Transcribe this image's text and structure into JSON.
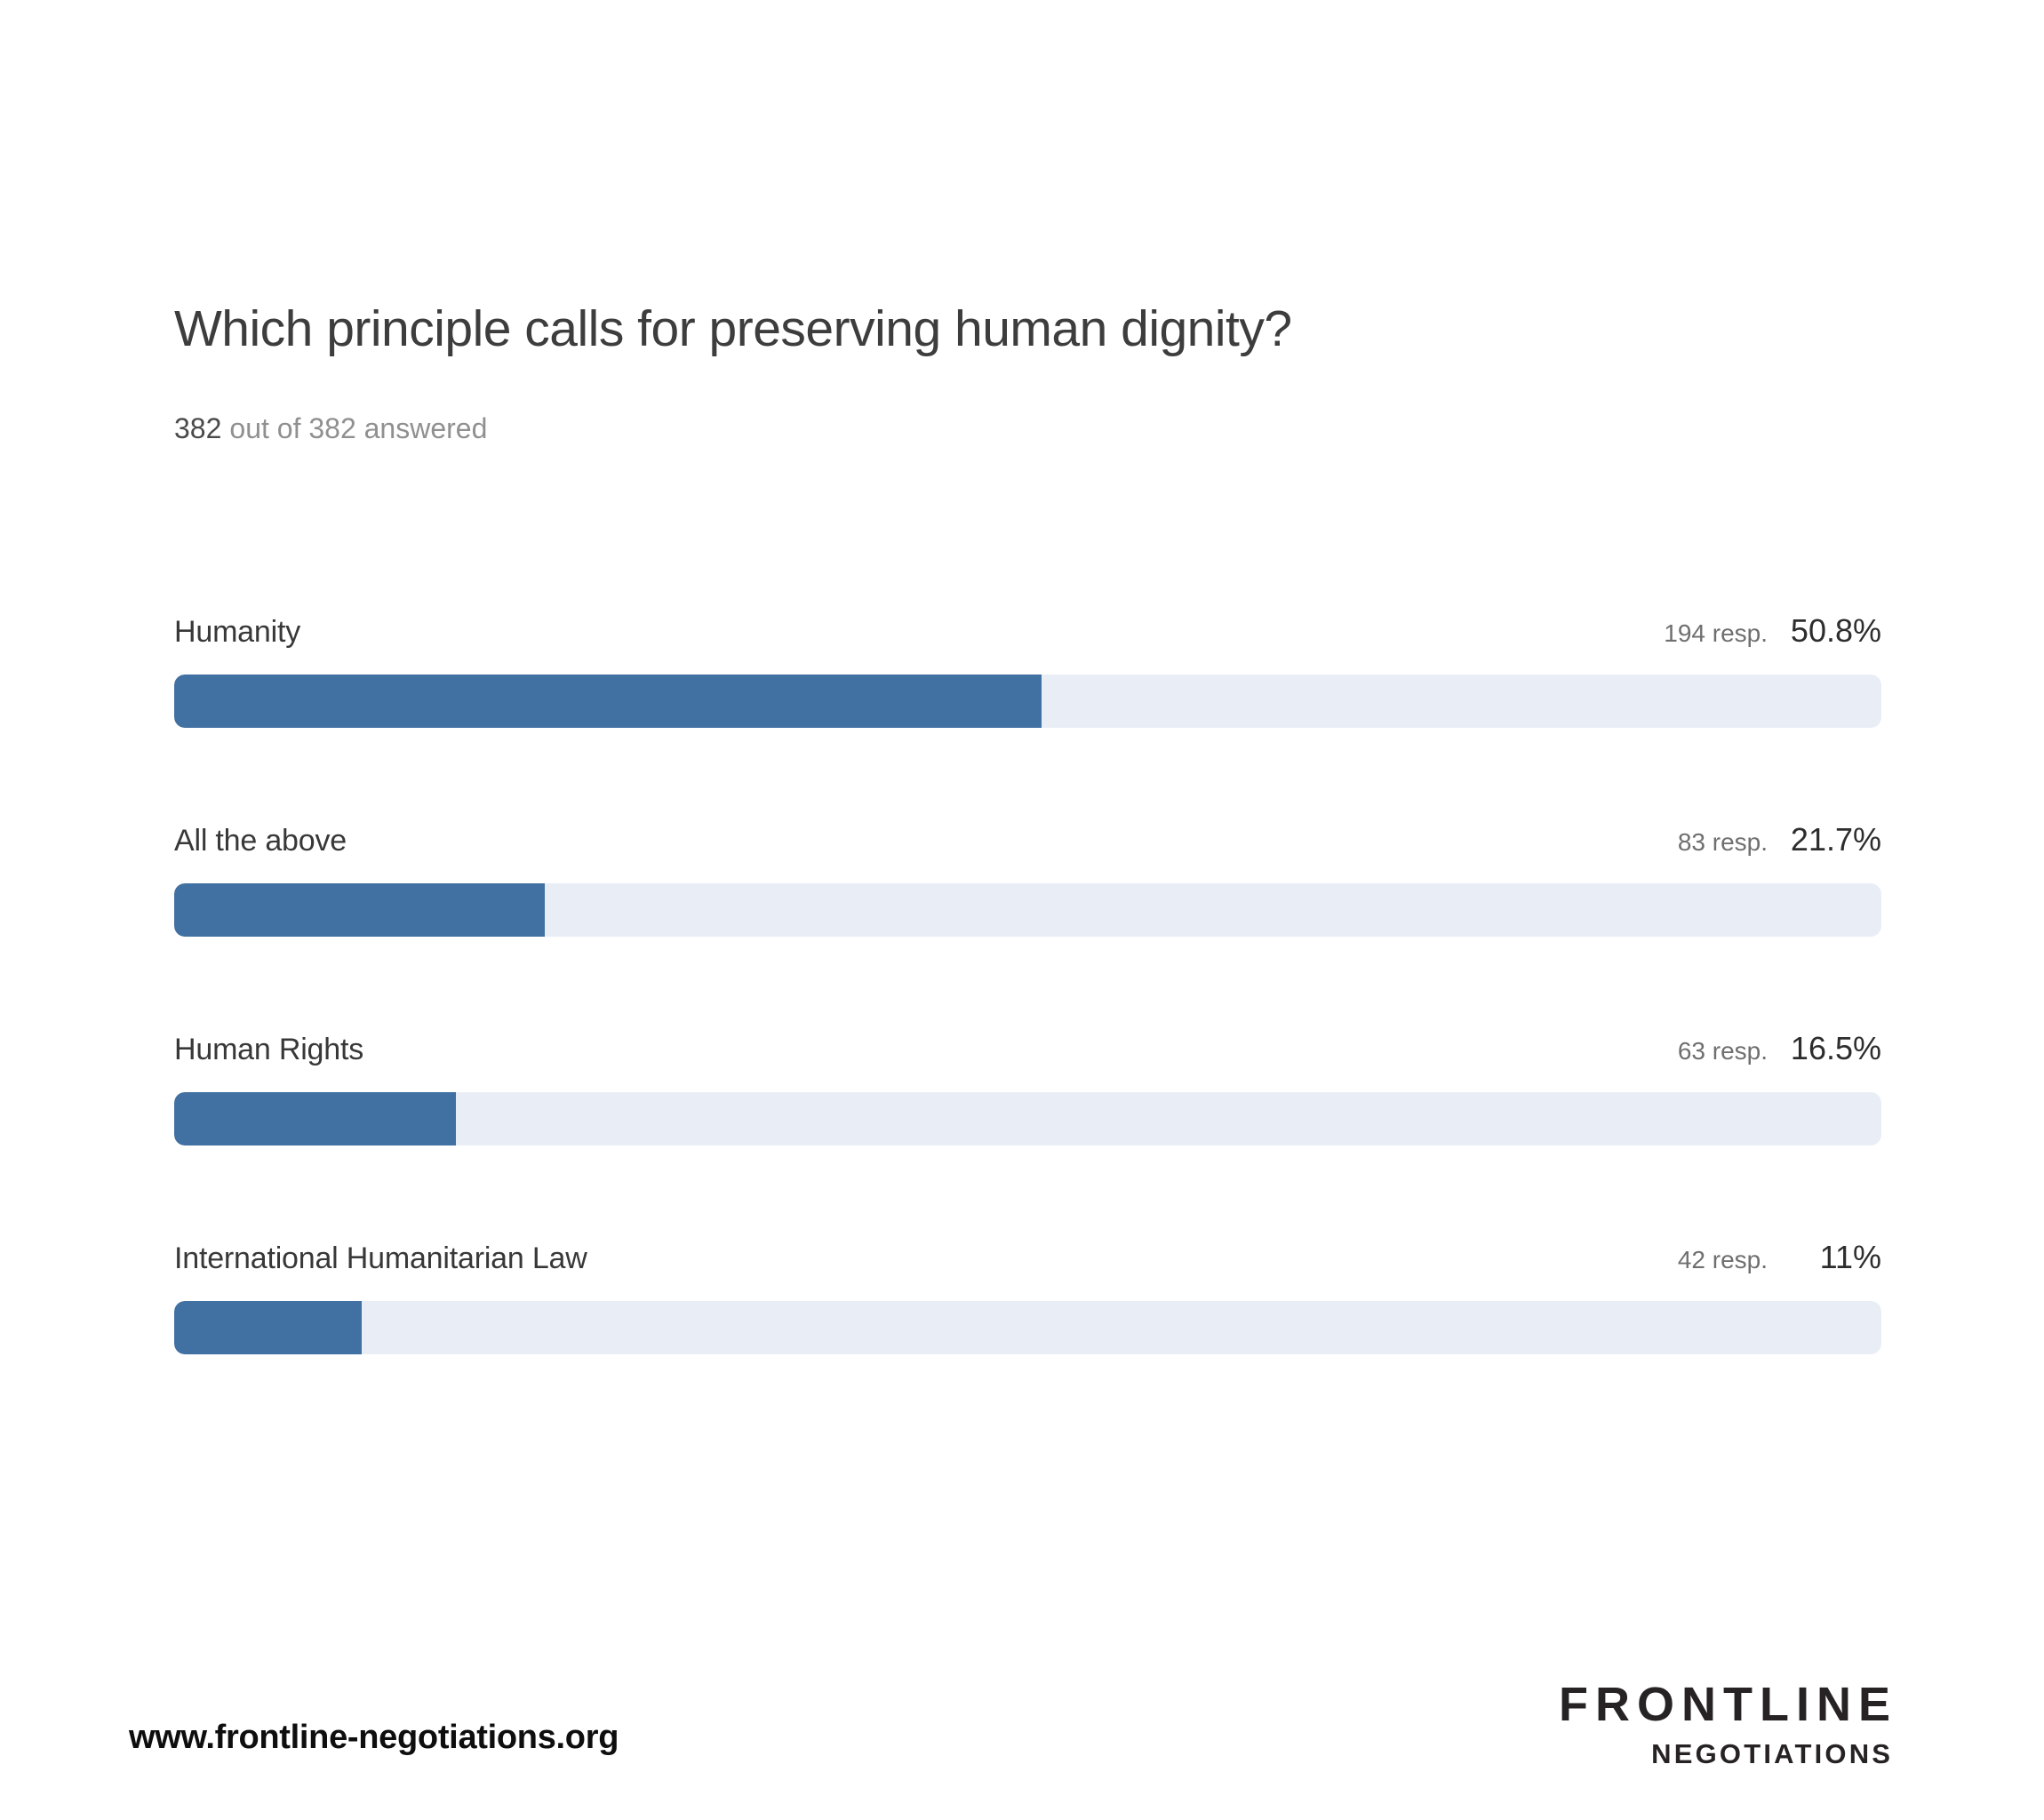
{
  "header": {
    "title": "Which principle calls for preserving human dignity?",
    "answered_count": "382",
    "answered_suffix": "out of 382 answered"
  },
  "chart_data": {
    "type": "bar",
    "orientation": "horizontal",
    "title": "Which principle calls for preserving human dignity?",
    "total_answered": 382,
    "total_participants": 382,
    "categories": [
      "Humanity",
      "All the above",
      "Human Rights",
      "International Humanitarian Law"
    ],
    "values": [
      194,
      83,
      63,
      42
    ],
    "percentages": [
      50.8,
      21.7,
      16.5,
      11
    ],
    "rows": [
      {
        "label": "Humanity",
        "responses": 194,
        "responses_label": "194 resp.",
        "percent": 50.8,
        "percent_label": "50.8%"
      },
      {
        "label": "All the above",
        "responses": 83,
        "responses_label": "83 resp.",
        "percent": 21.7,
        "percent_label": "21.7%"
      },
      {
        "label": "Human Rights",
        "responses": 63,
        "responses_label": "63 resp.",
        "percent": 16.5,
        "percent_label": "16.5%"
      },
      {
        "label": "International Humanitarian Law",
        "responses": 42,
        "responses_label": "42 resp.",
        "percent": 11,
        "percent_label": "11%"
      }
    ],
    "colors": {
      "bar_fill": "#4170a2",
      "bar_track": "#e9eef6"
    },
    "xlim": [
      0,
      100
    ],
    "grid": false,
    "legend": false
  },
  "footer": {
    "website": "www.frontline-negotiations.org",
    "logo_line1": "FRONTLINE",
    "logo_line2": "NEGOTIATIONS"
  }
}
